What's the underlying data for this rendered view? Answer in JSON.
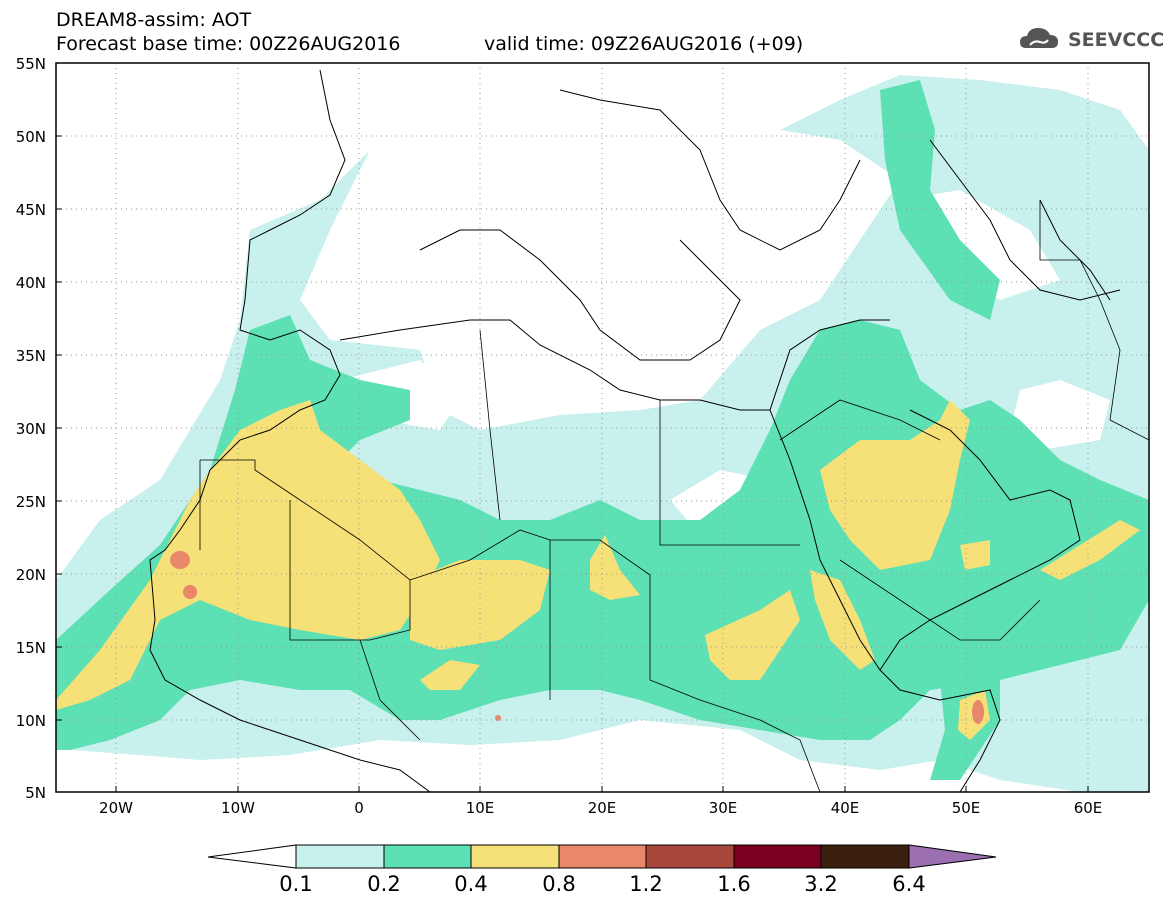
{
  "header": {
    "title_line1": "DREAM8-assim: AOT",
    "title_line2": "Forecast base time: 00Z26AUG2016",
    "valid_time": "valid time: 09Z26AUG2016 (+09)",
    "logo_text": "SEEVCCC"
  },
  "map": {
    "lat_labels": [
      "55N",
      "50N",
      "45N",
      "40N",
      "35N",
      "30N",
      "25N",
      "20N",
      "15N",
      "10N",
      "5N"
    ],
    "lon_labels": [
      "20W",
      "10W",
      "0",
      "10E",
      "20E",
      "30E",
      "40E",
      "50E",
      "60E"
    ],
    "lat_range": [
      5,
      55
    ],
    "lon_range": [
      -25,
      65
    ],
    "grid": "dotted",
    "field": "AOT"
  },
  "legend": {
    "labels": [
      "0.1",
      "0.2",
      "0.4",
      "0.8",
      "1.2",
      "1.6",
      "3.2",
      "6.4"
    ],
    "colors": [
      "#ffffff",
      "#c8f0ec",
      "#5ce0b4",
      "#f5e178",
      "#e8876a",
      "#a8473c",
      "#7a0020",
      "#3a1f0e",
      "#9b6fb0"
    ],
    "colors_note": "under, 0.1-0.2, 0.2-0.4, 0.4-0.8, 0.8-1.2, 1.2-1.6, 1.6-3.2, 3.2-6.4, over"
  }
}
